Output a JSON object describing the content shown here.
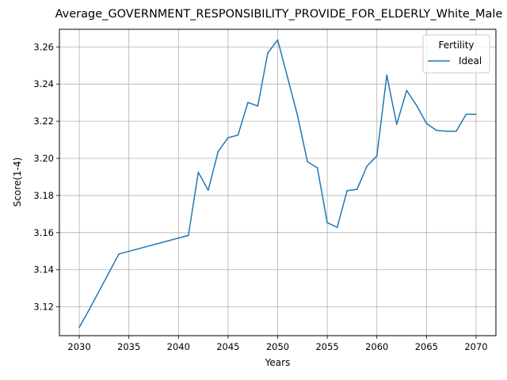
{
  "chart_data": {
    "type": "line",
    "title": "Average_GOVERNMENT_RESPONSIBILITY_PROVIDE_FOR_ELDERLY_White_Male",
    "xlabel": "Years",
    "ylabel": "Score(1-4)",
    "xlim": [
      2028,
      2072
    ],
    "ylim": [
      3.1045,
      3.2695
    ],
    "xticks": [
      "2030",
      "2035",
      "2040",
      "2045",
      "2050",
      "2055",
      "2060",
      "2065",
      "2070"
    ],
    "yticks": [
      "3.12",
      "3.14",
      "3.16",
      "3.18",
      "3.20",
      "3.22",
      "3.24",
      "3.26"
    ],
    "grid": true,
    "legend": {
      "title": "Fertility",
      "position": "top-right"
    },
    "series": [
      {
        "name": "Ideal",
        "color": "#1f77b4",
        "x": [
          2030,
          2031,
          2034,
          2041,
          2042,
          2043,
          2044,
          2045,
          2046,
          2047,
          2048,
          2049,
          2050,
          2051,
          2052,
          2053,
          2054,
          2055,
          2056,
          2057,
          2058,
          2059,
          2060,
          2061,
          2062,
          2063,
          2064,
          2065,
          2066,
          2067,
          2068,
          2069,
          2070
        ],
        "y": [
          3.109,
          3.1185,
          3.1485,
          3.1585,
          3.1925,
          3.1828,
          3.2037,
          3.2111,
          3.2125,
          3.2301,
          3.2282,
          3.2567,
          3.2638,
          3.2435,
          3.2231,
          3.1982,
          3.1949,
          3.1654,
          3.1628,
          3.1826,
          3.1833,
          3.1958,
          3.2013,
          3.2448,
          3.2183,
          3.2366,
          3.2285,
          3.2188,
          3.2151,
          3.2146,
          3.2146,
          3.2237,
          3.2237
        ]
      }
    ]
  }
}
